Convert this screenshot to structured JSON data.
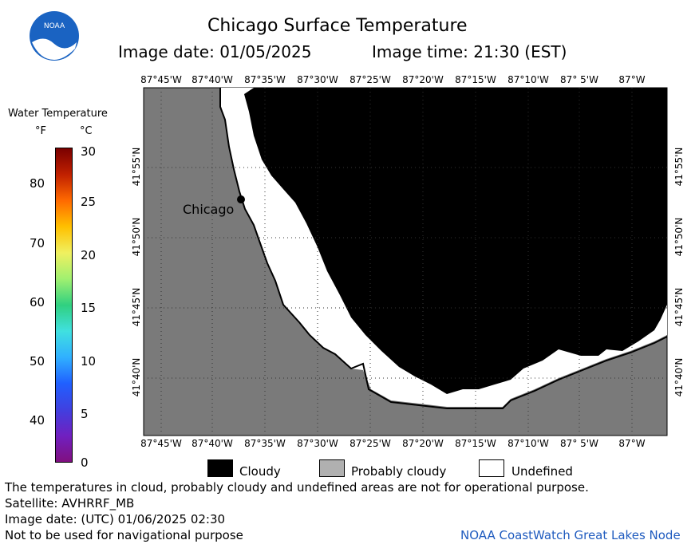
{
  "header": {
    "title": "Chicago Surface Temperature",
    "date_label": "Image date: 01/05/2025",
    "time_label": "Image time: 21:30 (EST)"
  },
  "colorbar": {
    "title": "Water Temperature",
    "unit_f": "°F",
    "unit_c": "°C",
    "f_ticks": [
      "80",
      "70",
      "60",
      "50",
      "40"
    ],
    "c_ticks": [
      "30",
      "25",
      "20",
      "15",
      "10",
      "5",
      "0"
    ]
  },
  "map": {
    "lon_labels": [
      "87°45'W",
      "87°40'W",
      "87°35'W",
      "87°30'W",
      "87°25'W",
      "87°20'W",
      "87°15'W",
      "87°10'W",
      "87° 5'W",
      "87°W"
    ],
    "lat_labels": [
      "41°55'N",
      "41°50'N",
      "41°45'N",
      "41°40'N"
    ],
    "city_label": "Chicago",
    "colors": {
      "land": "#7a7a7a",
      "cloudy": "#000000",
      "undefined": "#ffffff"
    }
  },
  "legend": {
    "cloudy": "Cloudy",
    "probably_cloudy": "Probably cloudy",
    "undefined": "Undefined"
  },
  "footer": {
    "disclaimer": "The temperatures in cloud, probably cloudy and undefined areas are not for operational purpose.",
    "satellite": "Satellite: AVHRRF_MB",
    "utc_date": "Image date: (UTC) 01/06/2025  02:30",
    "nav_warning": "Not to be used for navigational purpose",
    "credit": "NOAA CoastWatch Great Lakes Node"
  },
  "logo": {
    "text": "NOAA"
  }
}
